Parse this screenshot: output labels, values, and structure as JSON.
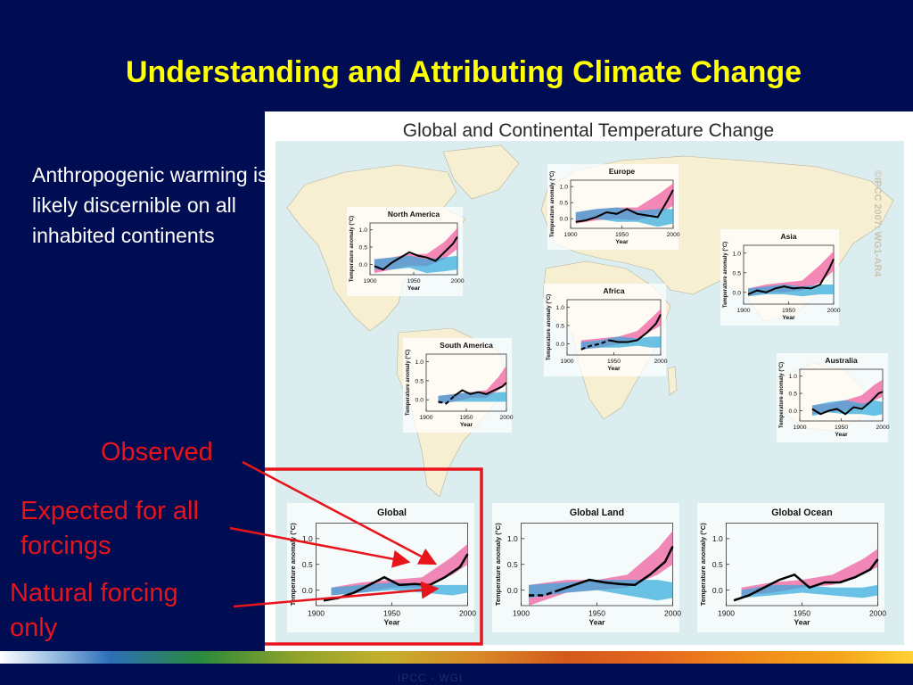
{
  "slide": {
    "title": "Understanding and Attributing Climate Change",
    "intro": "Anthropogenic warming is likely discernible on all inhabited continents",
    "callouts": {
      "observed": "Observed",
      "expected": [
        "Expected for all",
        "forcings"
      ],
      "natural": [
        "Natural forcing",
        "only"
      ]
    },
    "footer": "IPCC - WGI"
  },
  "colors": {
    "background": "#000d52",
    "title": "#ffff00",
    "callout": "#e8141c",
    "ocean": "#dcedf0",
    "land": "#f6efd2",
    "all_forcings_band": "#ee5a9c",
    "natural_forcing_band": "#33aadd",
    "observed_line": "#000000",
    "highlight_box": "#e8141c"
  },
  "chart_data": {
    "type": "line",
    "title": "Global and Continental Temperature Change",
    "copyright": "©IPCC 2007: WG1-AR4",
    "xlabel": "Year",
    "ylabel": "Temperature anomaly (°C)",
    "x_ticks": [
      "1900",
      "1950",
      "2000"
    ],
    "y_ticks": [
      "0.0",
      "0.5",
      "1.0"
    ],
    "legend": [
      {
        "name": "Observed",
        "color": "#000000"
      },
      {
        "name": "Expected for all forcings",
        "color": "#ee5a9c"
      },
      {
        "name": "Natural forcing only",
        "color": "#33aadd"
      }
    ],
    "panels": [
      {
        "title": "North America",
        "xlim": [
          1900,
          2000
        ],
        "ylim": [
          -0.3,
          1.2
        ],
        "grid": false,
        "series": [
          {
            "name": "Observed",
            "x": [
              1905,
              1915,
              1925,
              1935,
              1945,
              1955,
              1965,
              1975,
              1985,
              1995,
              2000
            ],
            "y": [
              -0.05,
              -0.15,
              0.05,
              0.2,
              0.35,
              0.25,
              0.2,
              0.1,
              0.35,
              0.6,
              0.8
            ],
            "dashed_until": 1905
          },
          {
            "name": "Expected for all forcings",
            "x": [
              1905,
              1925,
              1945,
              1965,
              1985,
              2000
            ],
            "low": [
              -0.25,
              -0.15,
              -0.05,
              -0.05,
              0.15,
              0.45
            ],
            "high": [
              0.15,
              0.2,
              0.3,
              0.3,
              0.65,
              1.05
            ]
          },
          {
            "name": "Natural forcing only",
            "x": [
              1905,
              1925,
              1945,
              1965,
              1985,
              2000
            ],
            "low": [
              -0.15,
              -0.15,
              -0.1,
              -0.25,
              -0.2,
              -0.15
            ],
            "high": [
              0.15,
              0.2,
              0.25,
              0.15,
              0.2,
              0.25
            ]
          }
        ]
      },
      {
        "title": "Europe",
        "xlim": [
          1900,
          2000
        ],
        "ylim": [
          -0.3,
          1.2
        ],
        "grid": false,
        "series": [
          {
            "name": "Observed",
            "x": [
              1905,
              1915,
              1925,
              1935,
              1945,
              1955,
              1965,
              1975,
              1985,
              1995,
              2000
            ],
            "y": [
              -0.1,
              -0.05,
              0.05,
              0.2,
              0.15,
              0.3,
              0.15,
              0.1,
              0.05,
              0.6,
              0.9
            ],
            "dashed_until": 1905
          },
          {
            "name": "Expected for all forcings",
            "x": [
              1905,
              1925,
              1945,
              1965,
              1985,
              2000
            ],
            "low": [
              -0.15,
              -0.05,
              0.0,
              -0.05,
              0.15,
              0.4
            ],
            "high": [
              0.2,
              0.3,
              0.35,
              0.35,
              0.75,
              1.1
            ]
          },
          {
            "name": "Natural forcing only",
            "x": [
              1905,
              1925,
              1945,
              1965,
              1985,
              2000
            ],
            "low": [
              -0.05,
              0.0,
              -0.1,
              -0.1,
              -0.25,
              -0.15
            ],
            "high": [
              0.2,
              0.3,
              0.35,
              0.25,
              0.3,
              0.3
            ]
          }
        ]
      },
      {
        "title": "Asia",
        "xlim": [
          1900,
          2000
        ],
        "ylim": [
          -0.3,
          1.2
        ],
        "grid": false,
        "series": [
          {
            "name": "Observed",
            "x": [
              1905,
              1915,
              1925,
              1935,
              1945,
              1955,
              1965,
              1975,
              1985,
              1995,
              2000
            ],
            "y": [
              -0.05,
              0.05,
              0.0,
              0.1,
              0.15,
              0.1,
              0.12,
              0.1,
              0.2,
              0.6,
              0.85
            ],
            "dashed_until": 1905
          },
          {
            "name": "Expected for all forcings",
            "x": [
              1905,
              1925,
              1945,
              1965,
              1985,
              2000
            ],
            "low": [
              -0.1,
              0.0,
              0.0,
              0.05,
              0.25,
              0.55
            ],
            "high": [
              0.1,
              0.2,
              0.25,
              0.3,
              0.7,
              1.05
            ]
          },
          {
            "name": "Natural forcing only",
            "x": [
              1905,
              1925,
              1945,
              1965,
              1985,
              2000
            ],
            "low": [
              -0.1,
              -0.05,
              -0.05,
              -0.1,
              -0.05,
              -0.05
            ],
            "high": [
              0.1,
              0.15,
              0.2,
              0.15,
              0.2,
              0.2
            ]
          }
        ]
      },
      {
        "title": "Africa",
        "xlim": [
          1900,
          2000
        ],
        "ylim": [
          -0.3,
          1.2
        ],
        "grid": false,
        "series": [
          {
            "name": "Observed",
            "x": [
              1915,
              1925,
              1935,
              1945,
              1955,
              1965,
              1975,
              1985,
              1995,
              2000
            ],
            "y": [
              -0.15,
              -0.05,
              0.0,
              0.1,
              0.05,
              0.05,
              0.1,
              0.3,
              0.55,
              0.8
            ],
            "dashed_until": 1945
          },
          {
            "name": "Expected for all forcings",
            "x": [
              1915,
              1935,
              1955,
              1975,
              1990,
              2000
            ],
            "low": [
              -0.15,
              -0.1,
              0.0,
              0.1,
              0.35,
              0.5
            ],
            "high": [
              0.1,
              0.15,
              0.2,
              0.35,
              0.7,
              0.95
            ]
          },
          {
            "name": "Natural forcing only",
            "x": [
              1915,
              1935,
              1955,
              1975,
              1990,
              2000
            ],
            "low": [
              -0.15,
              -0.1,
              -0.1,
              -0.05,
              -0.1,
              -0.1
            ],
            "high": [
              0.05,
              0.1,
              0.2,
              0.15,
              0.2,
              0.2
            ]
          }
        ]
      },
      {
        "title": "South America",
        "xlim": [
          1900,
          2000
        ],
        "ylim": [
          -0.3,
          1.2
        ],
        "grid": false,
        "series": [
          {
            "name": "Observed",
            "x": [
              1915,
              1925,
              1935,
              1945,
              1955,
              1965,
              1975,
              1985,
              1995,
              2000
            ],
            "y": [
              -0.05,
              -0.1,
              0.1,
              0.25,
              0.15,
              0.2,
              0.15,
              0.25,
              0.35,
              0.45
            ],
            "dashed_until": 1935
          },
          {
            "name": "Expected for all forcings",
            "x": [
              1915,
              1935,
              1955,
              1975,
              1990,
              2000
            ],
            "low": [
              -0.1,
              -0.05,
              0.05,
              0.05,
              0.25,
              0.4
            ],
            "high": [
              0.1,
              0.15,
              0.2,
              0.25,
              0.6,
              0.9
            ]
          },
          {
            "name": "Natural forcing only",
            "x": [
              1915,
              1935,
              1955,
              1975,
              1990,
              2000
            ],
            "low": [
              -0.1,
              -0.05,
              -0.05,
              -0.05,
              -0.05,
              -0.05
            ],
            "high": [
              0.1,
              0.15,
              0.2,
              0.15,
              0.2,
              0.2
            ]
          }
        ]
      },
      {
        "title": "Australia",
        "xlim": [
          1900,
          2000
        ],
        "ylim": [
          -0.3,
          1.2
        ],
        "grid": false,
        "series": [
          {
            "name": "Observed",
            "x": [
              1915,
              1925,
              1935,
              1945,
              1955,
              1965,
              1975,
              1985,
              1995,
              2000
            ],
            "y": [
              0.05,
              -0.1,
              0.0,
              0.05,
              -0.1,
              0.1,
              0.05,
              0.25,
              0.5,
              0.55
            ],
            "dashed_until": 1915
          },
          {
            "name": "Expected for all forcings",
            "x": [
              1915,
              1935,
              1955,
              1975,
              1990,
              2000
            ],
            "low": [
              -0.1,
              -0.05,
              0.0,
              0.1,
              0.3,
              0.4
            ],
            "high": [
              0.15,
              0.2,
              0.3,
              0.45,
              0.75,
              0.9
            ]
          },
          {
            "name": "Natural forcing only",
            "x": [
              1915,
              1935,
              1955,
              1975,
              1990,
              2000
            ],
            "low": [
              -0.15,
              -0.05,
              -0.1,
              -0.1,
              -0.15,
              -0.1
            ],
            "high": [
              0.15,
              0.25,
              0.3,
              0.2,
              0.3,
              0.25
            ]
          }
        ]
      },
      {
        "title": "Global",
        "xlim": [
          1900,
          2000
        ],
        "ylim": [
          -0.3,
          1.3
        ],
        "grid": false,
        "series": [
          {
            "name": "Observed",
            "x": [
              1905,
              1915,
              1925,
              1935,
              1945,
              1955,
              1965,
              1975,
              1985,
              1995,
              2000
            ],
            "y": [
              -0.2,
              -0.15,
              -0.05,
              0.1,
              0.25,
              0.1,
              0.12,
              0.1,
              0.25,
              0.45,
              0.7
            ],
            "dashed_until": 1905
          },
          {
            "name": "Expected for all forcings",
            "x": [
              1910,
              1930,
              1950,
              1970,
              1990,
              2000
            ],
            "low": [
              -0.1,
              -0.05,
              0.05,
              0.05,
              0.3,
              0.5
            ],
            "high": [
              0.05,
              0.15,
              0.2,
              0.25,
              0.65,
              0.9
            ]
          },
          {
            "name": "Natural forcing only",
            "x": [
              1910,
              1930,
              1950,
              1970,
              1990,
              2000
            ],
            "low": [
              -0.1,
              -0.05,
              0.0,
              -0.05,
              -0.1,
              -0.05
            ],
            "high": [
              0.05,
              0.1,
              0.15,
              0.1,
              0.1,
              0.1
            ]
          }
        ]
      },
      {
        "title": "Global Land",
        "xlim": [
          1900,
          2000
        ],
        "ylim": [
          -0.3,
          1.3
        ],
        "grid": false,
        "series": [
          {
            "name": "Observed",
            "x": [
              1905,
              1915,
              1925,
              1935,
              1945,
              1955,
              1965,
              1975,
              1985,
              1995,
              2000
            ],
            "y": [
              -0.1,
              -0.1,
              0.0,
              0.1,
              0.2,
              0.15,
              0.12,
              0.1,
              0.3,
              0.55,
              0.85
            ],
            "dashed_until": 1925
          },
          {
            "name": "Expected for all forcings",
            "x": [
              1905,
              1930,
              1950,
              1970,
              1990,
              2000
            ],
            "low": [
              -0.3,
              -0.05,
              0.0,
              0.05,
              0.3,
              0.5
            ],
            "high": [
              0.1,
              0.2,
              0.2,
              0.3,
              0.8,
              1.15
            ]
          },
          {
            "name": "Natural forcing only",
            "x": [
              1905,
              1930,
              1950,
              1970,
              1990,
              2000
            ],
            "low": [
              -0.15,
              -0.05,
              0.0,
              -0.1,
              -0.2,
              -0.15
            ],
            "high": [
              0.1,
              0.15,
              0.2,
              0.2,
              0.2,
              0.15
            ]
          }
        ]
      },
      {
        "title": "Global Ocean",
        "xlim": [
          1900,
          2000
        ],
        "ylim": [
          -0.3,
          1.3
        ],
        "grid": false,
        "series": [
          {
            "name": "Observed",
            "x": [
              1905,
              1915,
              1925,
              1935,
              1945,
              1955,
              1965,
              1975,
              1985,
              1995,
              2000
            ],
            "y": [
              -0.2,
              -0.1,
              0.05,
              0.2,
              0.3,
              0.05,
              0.15,
              0.15,
              0.25,
              0.4,
              0.6
            ],
            "dashed_until": 1905
          },
          {
            "name": "Expected for all forcings",
            "x": [
              1910,
              1930,
              1950,
              1970,
              1990,
              2000
            ],
            "low": [
              -0.1,
              -0.05,
              0.05,
              0.1,
              0.3,
              0.45
            ],
            "high": [
              0.05,
              0.15,
              0.2,
              0.3,
              0.6,
              0.8
            ]
          },
          {
            "name": "Natural forcing only",
            "x": [
              1910,
              1930,
              1950,
              1970,
              1990,
              2000
            ],
            "low": [
              -0.15,
              -0.1,
              -0.05,
              -0.1,
              -0.15,
              -0.1
            ],
            "high": [
              0.0,
              0.1,
              0.1,
              0.05,
              0.05,
              0.1
            ]
          }
        ]
      }
    ]
  }
}
